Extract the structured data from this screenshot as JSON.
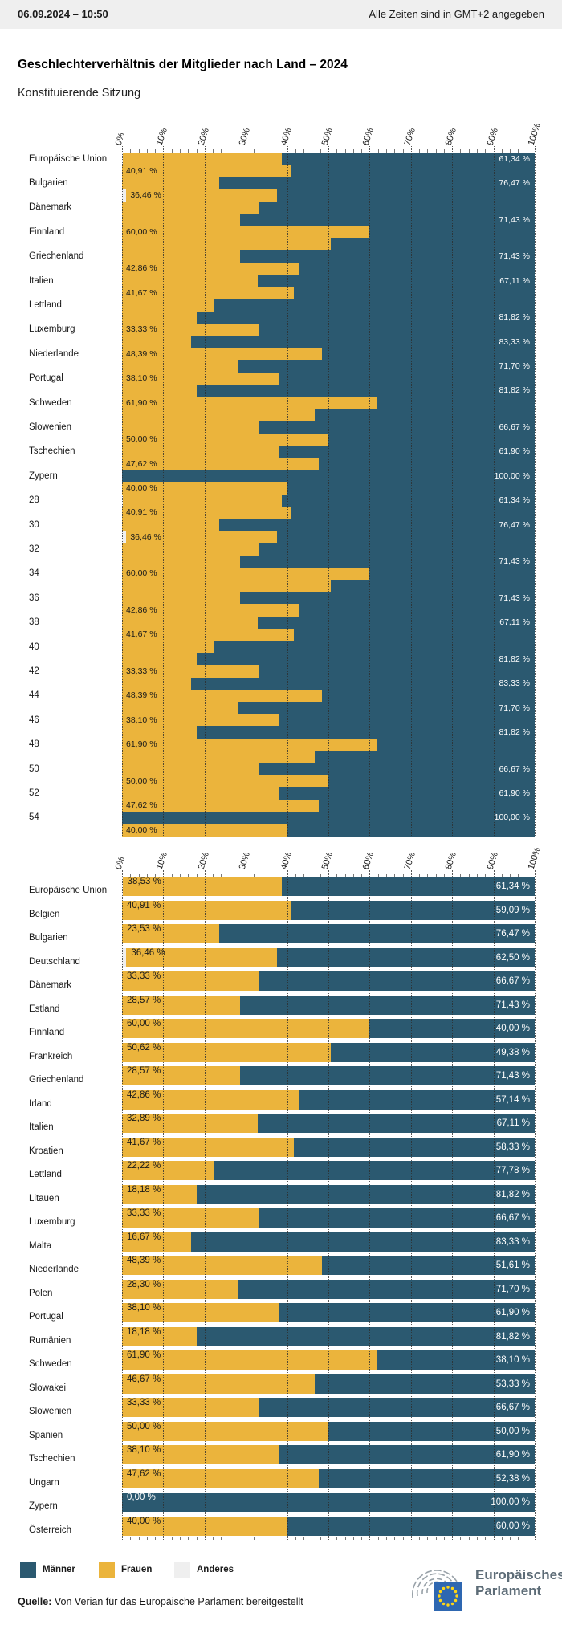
{
  "header": {
    "datetime": "06.09.2024 – 10:50",
    "timezone_note": "Alle Zeiten sind in GMT+2 angegeben"
  },
  "title": "Geschlechterverhältnis der Mitglieder nach Land – 2024",
  "subtitle": "Konstituierende Sitzung",
  "legend": {
    "items": [
      {
        "label": "Männer",
        "color": "#2B5970"
      },
      {
        "label": "Frauen",
        "color": "#EBB43C"
      },
      {
        "label": "Anderes",
        "color": "#EFEFEF"
      }
    ]
  },
  "source": {
    "prefix": "Quelle:",
    "text": " Von Verian für das Europäische Parlament bereitgestellt"
  },
  "logo": {
    "line1": "Europäisches",
    "line2": "Parlament"
  },
  "colors": {
    "maenner": "#2B5970",
    "frauen": "#EBB43C",
    "anderes": "#EFEFEF",
    "header_bar": "#EFEFEF",
    "logo_blue": "#2E67B1",
    "logo_star": "#FFD617",
    "logo_arc": "#98A1A8",
    "logo_text": "#5D6C77"
  },
  "chart_data": [
    {
      "type": "bar",
      "orientation": "horizontal",
      "stacked": true,
      "note": "Dense duplicated rendering: 56 thin rows, country sequence repeated twice; only alternating labels shown; rows 28-54 labeled with their even row index",
      "xlim": [
        0,
        100
      ],
      "x_tick_labels": [
        "0%",
        "10%",
        "20%",
        "30%",
        "40%",
        "50%",
        "60%",
        "70%",
        "80%",
        "90%",
        "100%"
      ],
      "row_count": 56,
      "categories": [
        "Europäische Union",
        "Belgien",
        "Bulgarien",
        "Deutschland",
        "Dänemark",
        "Estland",
        "Finnland",
        "Frankreich",
        "Griechenland",
        "Irland",
        "Italien",
        "Kroatien",
        "Lettland",
        "Litauen",
        "Luxemburg",
        "Malta",
        "Niederlande",
        "Polen",
        "Portugal",
        "Rumänien",
        "Schweden",
        "Slowakei",
        "Slowenien",
        "Spanien",
        "Tschechien",
        "Ungarn",
        "Zypern",
        "Österreich"
      ],
      "series": [
        {
          "name": "Anderes",
          "values": [
            0.13,
            0,
            0,
            1.04,
            0,
            0,
            0,
            0,
            0,
            0,
            0,
            0,
            0,
            0,
            0,
            0,
            0,
            0,
            0,
            0,
            0,
            0,
            0,
            0,
            0,
            0,
            0,
            0
          ]
        },
        {
          "name": "Frauen",
          "values": [
            38.53,
            40.91,
            23.53,
            36.46,
            33.33,
            28.57,
            60.0,
            50.62,
            28.57,
            42.86,
            32.89,
            41.67,
            22.22,
            18.18,
            33.33,
            16.67,
            48.39,
            28.3,
            38.1,
            18.18,
            61.9,
            46.67,
            33.33,
            50.0,
            38.1,
            47.62,
            0.0,
            40.0
          ]
        },
        {
          "name": "Männer",
          "values": [
            61.34,
            59.09,
            76.47,
            62.5,
            66.67,
            71.43,
            40.0,
            49.38,
            71.43,
            57.14,
            67.11,
            58.33,
            77.78,
            81.82,
            66.67,
            83.33,
            51.61,
            71.7,
            61.9,
            81.82,
            38.1,
            53.33,
            66.67,
            50.0,
            61.9,
            52.38,
            100.0,
            60.0
          ]
        }
      ],
      "left_labels": [
        "Europäische Union",
        "Bulgarien",
        "Dänemark",
        "Finnland",
        "Griechenland",
        "Italien",
        "Lettland",
        "Luxemburg",
        "Niederlande",
        "Portugal",
        "Schweden",
        "Slowenien",
        "Tschechien",
        "Zypern",
        "28",
        "30",
        "32",
        "34",
        "36",
        "38",
        "40",
        "42",
        "44",
        "46",
        "48",
        "50",
        "52",
        "54"
      ],
      "frauen_label_rows": [
        1,
        3,
        6,
        9,
        11,
        14,
        16,
        18,
        20,
        23,
        25,
        27,
        29,
        31,
        34,
        37,
        39,
        42,
        44,
        46,
        48,
        51,
        53,
        55
      ],
      "maenner_label_rows": [
        0,
        2,
        5,
        8,
        10,
        13,
        15,
        17,
        19,
        22,
        24,
        26,
        28,
        30,
        33,
        36,
        38,
        41,
        43,
        45,
        47,
        50,
        52,
        54
      ]
    },
    {
      "type": "bar",
      "orientation": "horizontal",
      "stacked": true,
      "xlim": [
        0,
        100
      ],
      "x_tick_labels": [
        "0%",
        "10%",
        "20%",
        "30%",
        "40%",
        "50%",
        "60%",
        "70%",
        "80%",
        "90%",
        "100%"
      ],
      "categories": [
        "Europäische Union",
        "Belgien",
        "Bulgarien",
        "Deutschland",
        "Dänemark",
        "Estland",
        "Finnland",
        "Frankreich",
        "Griechenland",
        "Irland",
        "Italien",
        "Kroatien",
        "Lettland",
        "Litauen",
        "Luxemburg",
        "Malta",
        "Niederlande",
        "Polen",
        "Portugal",
        "Rumänien",
        "Schweden",
        "Slowakei",
        "Slowenien",
        "Spanien",
        "Tschechien",
        "Ungarn",
        "Zypern",
        "Österreich"
      ],
      "series": [
        {
          "name": "Anderes",
          "values": [
            0.13,
            0,
            0,
            1.04,
            0,
            0,
            0,
            0,
            0,
            0,
            0,
            0,
            0,
            0,
            0,
            0,
            0,
            0,
            0,
            0,
            0,
            0,
            0,
            0,
            0,
            0,
            0,
            0
          ]
        },
        {
          "name": "Frauen",
          "values": [
            38.53,
            40.91,
            23.53,
            36.46,
            33.33,
            28.57,
            60.0,
            50.62,
            28.57,
            42.86,
            32.89,
            41.67,
            22.22,
            18.18,
            33.33,
            16.67,
            48.39,
            28.3,
            38.1,
            18.18,
            61.9,
            46.67,
            33.33,
            50.0,
            38.1,
            47.62,
            0.0,
            40.0
          ]
        },
        {
          "name": "Männer",
          "values": [
            61.34,
            59.09,
            76.47,
            62.5,
            66.67,
            71.43,
            40.0,
            49.38,
            71.43,
            57.14,
            67.11,
            58.33,
            77.78,
            81.82,
            66.67,
            83.33,
            51.61,
            71.7,
            61.9,
            81.82,
            38.1,
            53.33,
            66.67,
            50.0,
            61.9,
            52.38,
            100.0,
            60.0
          ]
        }
      ]
    }
  ]
}
